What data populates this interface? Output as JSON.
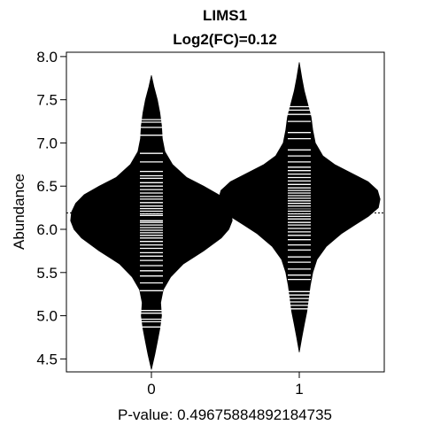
{
  "chart_data": {
    "type": "beanplot",
    "title": "LIMS1",
    "subtitle": "Log2(FC)=0.12",
    "ylabel": "Abundance",
    "xlabel": "P-value: 0.49675884892184735",
    "categories": [
      "0",
      "1"
    ],
    "ylim": [
      4.35,
      8.05
    ],
    "yticks": [
      4.5,
      5.0,
      5.5,
      6.0,
      6.5,
      7.0,
      7.5,
      8.0
    ],
    "ytick_labels": [
      "4.5",
      "5.0",
      "5.5",
      "6.0",
      "6.5",
      "7.0",
      "7.5",
      "8.0"
    ],
    "overall_mean": 6.19,
    "group_means": [
      6.13,
      6.25
    ],
    "colors": {
      "bean": "#000000",
      "ticks": "#ffffff",
      "frame": "#000000"
    },
    "series": [
      {
        "name": "0",
        "density": [
          [
            4.38,
            0.0
          ],
          [
            4.55,
            0.04
          ],
          [
            4.7,
            0.07
          ],
          [
            4.85,
            0.1
          ],
          [
            5.0,
            0.12
          ],
          [
            5.15,
            0.11
          ],
          [
            5.3,
            0.14
          ],
          [
            5.45,
            0.23
          ],
          [
            5.6,
            0.38
          ],
          [
            5.75,
            0.62
          ],
          [
            5.9,
            0.83
          ],
          [
            6.0,
            0.92
          ],
          [
            6.1,
            0.96
          ],
          [
            6.2,
            0.95
          ],
          [
            6.3,
            0.9
          ],
          [
            6.4,
            0.8
          ],
          [
            6.5,
            0.62
          ],
          [
            6.6,
            0.42
          ],
          [
            6.75,
            0.25
          ],
          [
            6.9,
            0.16
          ],
          [
            7.05,
            0.13
          ],
          [
            7.2,
            0.12
          ],
          [
            7.35,
            0.1
          ],
          [
            7.5,
            0.07
          ],
          [
            7.65,
            0.03
          ],
          [
            7.78,
            0.0
          ]
        ],
        "observations": [
          4.87,
          4.93,
          4.96,
          5.03,
          5.06,
          5.29,
          5.38,
          5.46,
          5.52,
          5.58,
          5.64,
          5.69,
          5.73,
          5.78,
          5.82,
          5.86,
          5.9,
          5.93,
          5.96,
          5.99,
          6.02,
          6.05,
          6.08,
          6.1,
          6.13,
          6.16,
          6.18,
          6.21,
          6.24,
          6.27,
          6.31,
          6.35,
          6.38,
          6.42,
          6.46,
          6.5,
          6.54,
          6.59,
          6.62,
          6.67,
          6.78,
          6.88,
          7.09,
          7.18,
          7.24,
          7.27
        ]
      },
      {
        "name": "1",
        "density": [
          [
            4.58,
            0.0
          ],
          [
            4.75,
            0.03
          ],
          [
            4.9,
            0.06
          ],
          [
            5.05,
            0.09
          ],
          [
            5.2,
            0.11
          ],
          [
            5.35,
            0.13
          ],
          [
            5.5,
            0.16
          ],
          [
            5.65,
            0.21
          ],
          [
            5.8,
            0.32
          ],
          [
            5.95,
            0.5
          ],
          [
            6.05,
            0.66
          ],
          [
            6.15,
            0.82
          ],
          [
            6.25,
            0.94
          ],
          [
            6.35,
            0.96
          ],
          [
            6.45,
            0.93
          ],
          [
            6.55,
            0.82
          ],
          [
            6.65,
            0.62
          ],
          [
            6.75,
            0.42
          ],
          [
            6.85,
            0.28
          ],
          [
            7.0,
            0.19
          ],
          [
            7.15,
            0.16
          ],
          [
            7.3,
            0.14
          ],
          [
            7.45,
            0.1
          ],
          [
            7.6,
            0.06
          ],
          [
            7.75,
            0.03
          ],
          [
            7.93,
            0.0
          ]
        ],
        "observations": [
          5.08,
          5.12,
          5.16,
          5.2,
          5.24,
          5.28,
          5.42,
          5.47,
          5.54,
          5.62,
          5.68,
          5.76,
          5.82,
          5.88,
          5.93,
          5.97,
          6.01,
          6.05,
          6.08,
          6.12,
          6.15,
          6.18,
          6.21,
          6.24,
          6.27,
          6.3,
          6.33,
          6.36,
          6.39,
          6.42,
          6.45,
          6.48,
          6.52,
          6.56,
          6.6,
          6.64,
          6.68,
          6.72,
          6.78,
          6.85,
          6.92,
          7.05,
          7.12,
          7.25,
          7.33,
          7.38,
          7.42
        ]
      }
    ]
  }
}
